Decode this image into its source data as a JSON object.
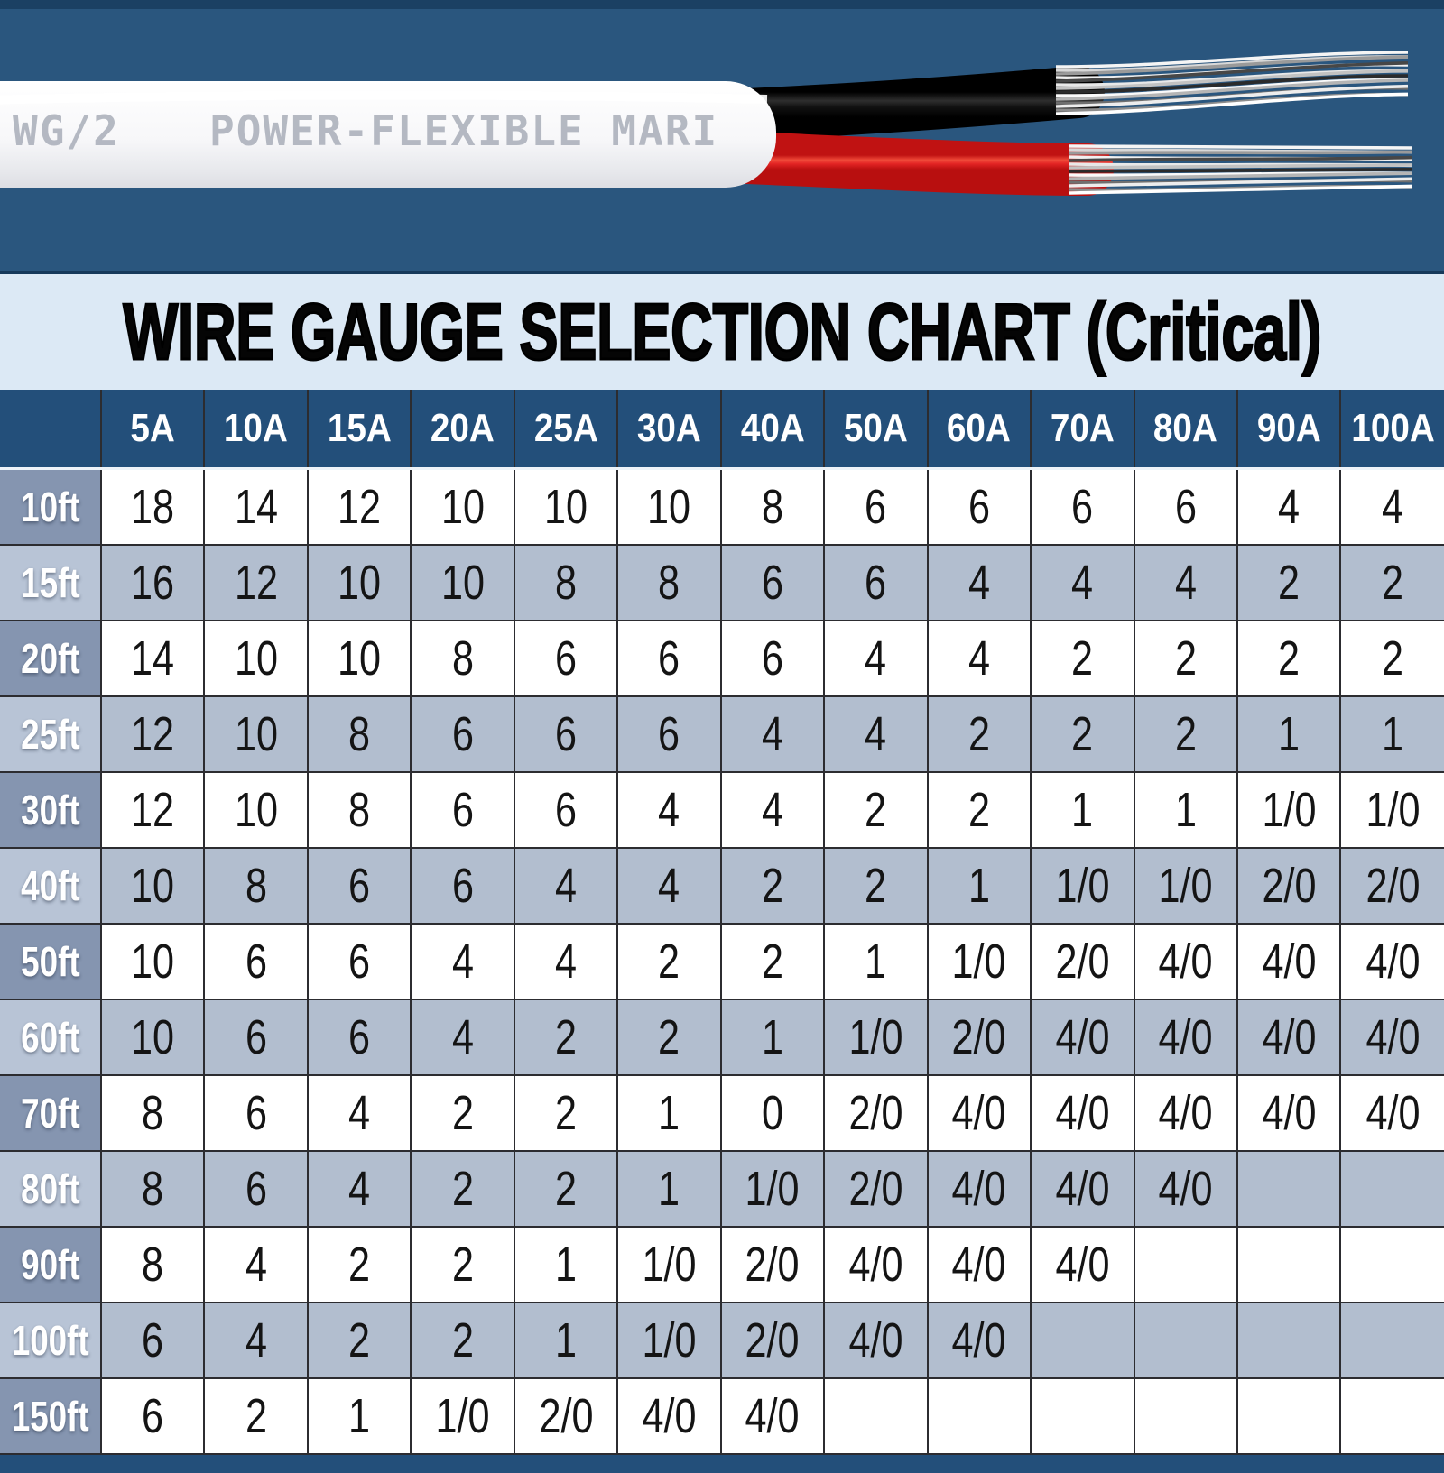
{
  "hero": {
    "print_left": "WG/2",
    "print_right": "POWER-FLEXIBLE MARI"
  },
  "title": "WIRE GAUGE SELECTION CHART (Critical)",
  "colors": {
    "photo_band_bg": "#2a567e",
    "photo_band_top_strip": "#1b4063",
    "title_band_bg": "#dce9f5",
    "header_navy": "#234f7a",
    "row_alt_blue_gray": "#b2becf",
    "row_label_dark": "#8595b0",
    "row_label_light": "#b8c4d6",
    "wire_red": "#e32424",
    "wire_black": "#1a1a1a",
    "jacket_white": "#f7f7f9"
  },
  "chart_data": {
    "type": "table",
    "title": "WIRE GAUGE SELECTION CHART (Critical)",
    "corner_label": "",
    "columns": [
      "5A",
      "10A",
      "15A",
      "20A",
      "25A",
      "30A",
      "40A",
      "50A",
      "60A",
      "70A",
      "80A",
      "90A",
      "100A"
    ],
    "rows": [
      {
        "label": "10ft",
        "values": [
          "18",
          "14",
          "12",
          "10",
          "10",
          "10",
          "8",
          "6",
          "6",
          "6",
          "6",
          "4",
          "4"
        ]
      },
      {
        "label": "15ft",
        "values": [
          "16",
          "12",
          "10",
          "10",
          "8",
          "8",
          "6",
          "6",
          "4",
          "4",
          "4",
          "2",
          "2"
        ]
      },
      {
        "label": "20ft",
        "values": [
          "14",
          "10",
          "10",
          "8",
          "6",
          "6",
          "6",
          "4",
          "4",
          "2",
          "2",
          "2",
          "2"
        ]
      },
      {
        "label": "25ft",
        "values": [
          "12",
          "10",
          "8",
          "6",
          "6",
          "6",
          "4",
          "4",
          "2",
          "2",
          "2",
          "1",
          "1"
        ]
      },
      {
        "label": "30ft",
        "values": [
          "12",
          "10",
          "8",
          "6",
          "6",
          "4",
          "4",
          "2",
          "2",
          "1",
          "1",
          "1/0",
          "1/0"
        ]
      },
      {
        "label": "40ft",
        "values": [
          "10",
          "8",
          "6",
          "6",
          "4",
          "4",
          "2",
          "2",
          "1",
          "1/0",
          "1/0",
          "2/0",
          "2/0"
        ]
      },
      {
        "label": "50ft",
        "values": [
          "10",
          "6",
          "6",
          "4",
          "4",
          "2",
          "2",
          "1",
          "1/0",
          "2/0",
          "4/0",
          "4/0",
          "4/0"
        ]
      },
      {
        "label": "60ft",
        "values": [
          "10",
          "6",
          "6",
          "4",
          "2",
          "2",
          "1",
          "1/0",
          "2/0",
          "4/0",
          "4/0",
          "4/0",
          "4/0"
        ]
      },
      {
        "label": "70ft",
        "values": [
          "8",
          "6",
          "4",
          "2",
          "2",
          "1",
          "0",
          "2/0",
          "4/0",
          "4/0",
          "4/0",
          "4/0",
          "4/0"
        ]
      },
      {
        "label": "80ft",
        "values": [
          "8",
          "6",
          "4",
          "2",
          "2",
          "1",
          "1/0",
          "2/0",
          "4/0",
          "4/0",
          "4/0",
          "",
          ""
        ]
      },
      {
        "label": "90ft",
        "values": [
          "8",
          "4",
          "2",
          "2",
          "1",
          "1/0",
          "2/0",
          "4/0",
          "4/0",
          "4/0",
          "",
          "",
          ""
        ]
      },
      {
        "label": "100ft",
        "values": [
          "6",
          "4",
          "2",
          "2",
          "1",
          "1/0",
          "2/0",
          "4/0",
          "4/0",
          "",
          "",
          "",
          ""
        ]
      },
      {
        "label": "150ft",
        "values": [
          "6",
          "2",
          "1",
          "1/0",
          "2/0",
          "4/0",
          "4/0",
          "",
          "",
          "",
          "",
          "",
          ""
        ]
      }
    ]
  }
}
